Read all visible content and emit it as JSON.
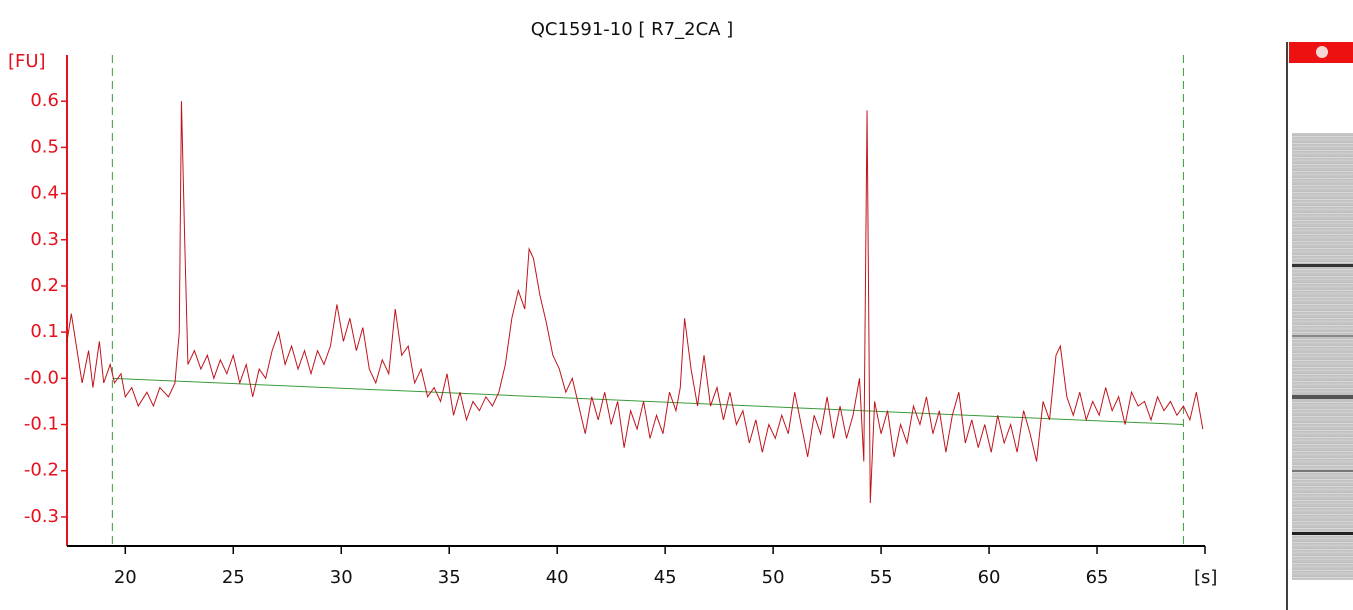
{
  "chart_data": {
    "type": "line",
    "title": "QC1591-10  [ R7_2CA ]",
    "y_label": "[FU]",
    "x_label": "[s]",
    "color": "#c0141c",
    "axis_color": "#e8101c",
    "xlim": [
      17.3,
      70
    ],
    "ylim": [
      -0.363,
      0.7
    ],
    "xticks": [
      20,
      25,
      30,
      35,
      40,
      45,
      50,
      55,
      60,
      65
    ],
    "yticks": [
      -0.3,
      -0.2,
      -0.1,
      {
        "value": 0,
        "label": "-0.0"
      },
      0.1,
      0.2,
      0.3,
      0.4,
      0.5,
      0.6
    ],
    "markers": [
      19.4,
      69.0
    ],
    "marker_color": "#3a9a3a",
    "baseline": {
      "x": [
        19.4,
        69.0
      ],
      "values": [
        0.0,
        -0.1
      ],
      "color": "#3a9a3a"
    },
    "x": [
      17.3,
      17.5,
      17.8,
      18.0,
      18.3,
      18.5,
      18.8,
      19.0,
      19.3,
      19.5,
      19.8,
      20.0,
      20.3,
      20.6,
      21.0,
      21.3,
      21.6,
      22.0,
      22.3,
      22.5,
      22.6,
      22.75,
      22.9,
      23.2,
      23.5,
      23.8,
      24.1,
      24.4,
      24.7,
      25.0,
      25.3,
      25.6,
      25.9,
      26.2,
      26.5,
      26.8,
      27.1,
      27.4,
      27.7,
      28.0,
      28.3,
      28.6,
      28.9,
      29.2,
      29.5,
      29.8,
      30.1,
      30.4,
      30.7,
      31.0,
      31.3,
      31.6,
      31.9,
      32.2,
      32.5,
      32.8,
      33.1,
      33.4,
      33.7,
      34.0,
      34.3,
      34.6,
      34.9,
      35.2,
      35.5,
      35.8,
      36.1,
      36.4,
      36.7,
      37.0,
      37.3,
      37.6,
      37.9,
      38.2,
      38.5,
      38.7,
      38.9,
      39.2,
      39.5,
      39.8,
      40.1,
      40.4,
      40.7,
      41.0,
      41.3,
      41.6,
      41.9,
      42.2,
      42.5,
      42.8,
      43.1,
      43.4,
      43.7,
      44.0,
      44.3,
      44.6,
      44.9,
      45.2,
      45.5,
      45.7,
      45.9,
      46.2,
      46.5,
      46.8,
      47.1,
      47.4,
      47.7,
      48.0,
      48.3,
      48.6,
      48.9,
      49.2,
      49.5,
      49.8,
      50.1,
      50.4,
      50.7,
      51.0,
      51.3,
      51.6,
      51.9,
      52.2,
      52.5,
      52.8,
      53.1,
      53.4,
      53.7,
      54.0,
      54.2,
      54.35,
      54.5,
      54.7,
      55.0,
      55.3,
      55.6,
      55.9,
      56.2,
      56.5,
      56.8,
      57.1,
      57.4,
      57.7,
      58.0,
      58.3,
      58.6,
      58.9,
      59.2,
      59.5,
      59.8,
      60.1,
      60.4,
      60.7,
      61.0,
      61.3,
      61.6,
      61.9,
      62.2,
      62.5,
      62.8,
      63.1,
      63.3,
      63.6,
      63.9,
      64.2,
      64.5,
      64.8,
      65.1,
      65.4,
      65.7,
      66.0,
      66.3,
      66.6,
      66.9,
      67.2,
      67.5,
      67.8,
      68.1,
      68.4,
      68.7,
      69.0,
      69.3,
      69.6,
      69.9
    ],
    "values": [
      0.08,
      0.14,
      0.05,
      -0.01,
      0.06,
      -0.02,
      0.08,
      -0.01,
      0.03,
      -0.01,
      0.01,
      -0.04,
      -0.02,
      -0.06,
      -0.03,
      -0.06,
      -0.02,
      -0.04,
      -0.01,
      0.1,
      0.6,
      0.3,
      0.03,
      0.06,
      0.02,
      0.05,
      0.0,
      0.04,
      0.01,
      0.05,
      -0.01,
      0.03,
      -0.04,
      0.02,
      0.0,
      0.06,
      0.1,
      0.03,
      0.07,
      0.02,
      0.06,
      0.01,
      0.06,
      0.03,
      0.07,
      0.16,
      0.08,
      0.13,
      0.06,
      0.11,
      0.02,
      -0.01,
      0.04,
      0.01,
      0.15,
      0.05,
      0.07,
      -0.01,
      0.02,
      -0.04,
      -0.02,
      -0.05,
      0.01,
      -0.08,
      -0.03,
      -0.09,
      -0.05,
      -0.07,
      -0.04,
      -0.06,
      -0.03,
      0.03,
      0.13,
      0.19,
      0.15,
      0.28,
      0.26,
      0.18,
      0.12,
      0.05,
      0.02,
      -0.03,
      0.0,
      -0.06,
      -0.12,
      -0.04,
      -0.09,
      -0.03,
      -0.1,
      -0.05,
      -0.15,
      -0.07,
      -0.11,
      -0.05,
      -0.13,
      -0.08,
      -0.12,
      -0.03,
      -0.07,
      -0.02,
      0.13,
      0.02,
      -0.06,
      0.05,
      -0.06,
      -0.02,
      -0.09,
      -0.03,
      -0.1,
      -0.07,
      -0.14,
      -0.09,
      -0.16,
      -0.1,
      -0.13,
      -0.08,
      -0.12,
      -0.03,
      -0.1,
      -0.17,
      -0.08,
      -0.12,
      -0.04,
      -0.13,
      -0.06,
      -0.13,
      -0.08,
      0.0,
      -0.18,
      0.58,
      -0.27,
      -0.05,
      -0.12,
      -0.07,
      -0.17,
      -0.1,
      -0.14,
      -0.06,
      -0.1,
      -0.04,
      -0.12,
      -0.07,
      -0.16,
      -0.08,
      -0.03,
      -0.14,
      -0.09,
      -0.15,
      -0.1,
      -0.16,
      -0.08,
      -0.14,
      -0.1,
      -0.16,
      -0.07,
      -0.12,
      -0.18,
      -0.05,
      -0.09,
      0.05,
      0.07,
      -0.04,
      -0.08,
      -0.03,
      -0.09,
      -0.05,
      -0.08,
      -0.02,
      -0.07,
      -0.04,
      -0.1,
      -0.03,
      -0.06,
      -0.05,
      -0.09,
      -0.04,
      -0.07,
      -0.05,
      -0.08,
      -0.06,
      -0.09,
      -0.03,
      -0.11
    ]
  }
}
